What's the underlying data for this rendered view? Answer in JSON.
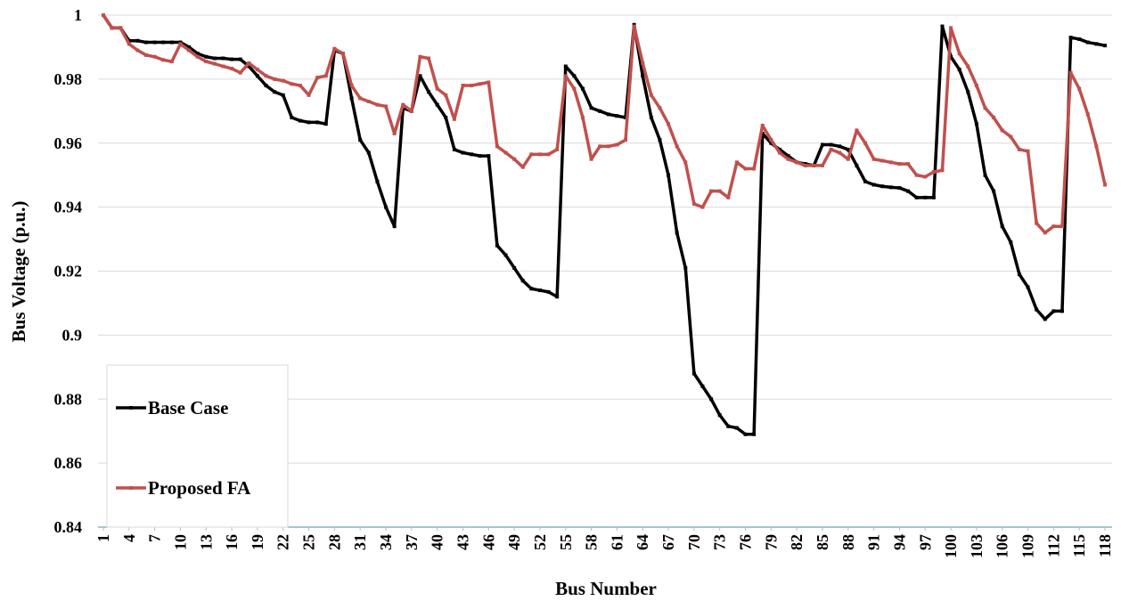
{
  "chart_data": {
    "type": "line",
    "x_label": "Bus Number",
    "y_label": "Bus Voltage (p.u.)",
    "x": [
      1,
      2,
      3,
      4,
      5,
      6,
      7,
      8,
      9,
      10,
      11,
      12,
      13,
      14,
      15,
      16,
      17,
      18,
      19,
      20,
      21,
      22,
      23,
      24,
      25,
      26,
      27,
      28,
      29,
      30,
      31,
      32,
      33,
      34,
      35,
      36,
      37,
      38,
      39,
      40,
      41,
      42,
      43,
      44,
      45,
      46,
      47,
      48,
      49,
      50,
      51,
      52,
      53,
      54,
      55,
      56,
      57,
      58,
      59,
      60,
      61,
      62,
      63,
      64,
      65,
      66,
      67,
      68,
      69,
      70,
      71,
      72,
      73,
      74,
      75,
      76,
      77,
      78,
      79,
      80,
      81,
      82,
      83,
      84,
      85,
      86,
      87,
      88,
      89,
      90,
      91,
      92,
      93,
      94,
      95,
      96,
      97,
      98,
      99,
      100,
      101,
      102,
      103,
      104,
      105,
      106,
      107,
      108,
      109,
      110,
      111,
      112,
      113,
      114,
      115,
      116,
      117,
      118
    ],
    "xlim": [
      1,
      118
    ],
    "xticks": [
      1,
      4,
      7,
      10,
      13,
      16,
      19,
      22,
      25,
      28,
      31,
      34,
      37,
      40,
      43,
      46,
      49,
      52,
      55,
      58,
      61,
      64,
      67,
      70,
      73,
      76,
      79,
      82,
      85,
      88,
      91,
      94,
      97,
      100,
      103,
      106,
      109,
      112,
      115,
      118
    ],
    "ylim": [
      0.84,
      1
    ],
    "yticks": [
      0.84,
      0.86,
      0.88,
      0.9,
      0.92,
      0.94,
      0.96,
      0.98,
      1
    ],
    "grid": true,
    "legend": "bottom-left",
    "series": [
      {
        "name": "Base Case",
        "color": "#000000",
        "values": [
          1.0,
          0.996,
          0.996,
          0.992,
          0.992,
          0.9915,
          0.9915,
          0.9915,
          0.9915,
          0.9915,
          0.99,
          0.988,
          0.987,
          0.9865,
          0.9865,
          0.9862,
          0.9862,
          0.984,
          0.981,
          0.978,
          0.976,
          0.975,
          0.968,
          0.967,
          0.9665,
          0.9665,
          0.966,
          0.989,
          0.988,
          0.974,
          0.961,
          0.957,
          0.948,
          0.94,
          0.934,
          0.971,
          0.97,
          0.981,
          0.976,
          0.972,
          0.968,
          0.958,
          0.957,
          0.9565,
          0.956,
          0.956,
          0.928,
          0.925,
          0.921,
          0.917,
          0.9145,
          0.914,
          0.9135,
          0.912,
          0.984,
          0.981,
          0.977,
          0.971,
          0.97,
          0.969,
          0.9685,
          0.968,
          0.997,
          0.981,
          0.968,
          0.961,
          0.95,
          0.932,
          0.921,
          0.888,
          0.884,
          0.88,
          0.875,
          0.8715,
          0.871,
          0.869,
          0.869,
          0.963,
          0.96,
          0.958,
          0.956,
          0.954,
          0.9535,
          0.953,
          0.9595,
          0.9595,
          0.959,
          0.958,
          0.953,
          0.948,
          0.947,
          0.9465,
          0.9462,
          0.946,
          0.945,
          0.943,
          0.943,
          0.943,
          0.9965,
          0.987,
          0.983,
          0.976,
          0.966,
          0.95,
          0.945,
          0.934,
          0.929,
          0.919,
          0.915,
          0.908,
          0.905,
          0.9075,
          0.9075,
          0.993,
          0.9925,
          0.9915,
          0.991,
          0.9905
        ]
      },
      {
        "name": "Proposed FA",
        "color": "#c0504d",
        "values": [
          1.0,
          0.996,
          0.996,
          0.991,
          0.989,
          0.9875,
          0.987,
          0.986,
          0.9855,
          0.991,
          0.989,
          0.987,
          0.9855,
          0.9848,
          0.984,
          0.9833,
          0.982,
          0.985,
          0.983,
          0.981,
          0.98,
          0.9795,
          0.9785,
          0.978,
          0.975,
          0.9805,
          0.981,
          0.9895,
          0.988,
          0.978,
          0.974,
          0.973,
          0.972,
          0.9715,
          0.963,
          0.972,
          0.97,
          0.987,
          0.9865,
          0.977,
          0.975,
          0.9675,
          0.978,
          0.978,
          0.9785,
          0.979,
          0.959,
          0.957,
          0.955,
          0.9525,
          0.9565,
          0.9565,
          0.9565,
          0.958,
          0.981,
          0.977,
          0.968,
          0.955,
          0.959,
          0.959,
          0.9595,
          0.961,
          0.9965,
          0.985,
          0.975,
          0.971,
          0.966,
          0.959,
          0.954,
          0.941,
          0.94,
          0.945,
          0.945,
          0.943,
          0.954,
          0.952,
          0.952,
          0.9655,
          0.961,
          0.957,
          0.955,
          0.954,
          0.953,
          0.953,
          0.953,
          0.958,
          0.957,
          0.955,
          0.964,
          0.96,
          0.955,
          0.9545,
          0.954,
          0.9535,
          0.9535,
          0.95,
          0.9495,
          0.951,
          0.9515,
          0.996,
          0.988,
          0.984,
          0.978,
          0.971,
          0.968,
          0.964,
          0.962,
          0.958,
          0.9575,
          0.935,
          0.932,
          0.934,
          0.934,
          0.982,
          0.977,
          0.969,
          0.959,
          0.947
        ]
      }
    ]
  }
}
